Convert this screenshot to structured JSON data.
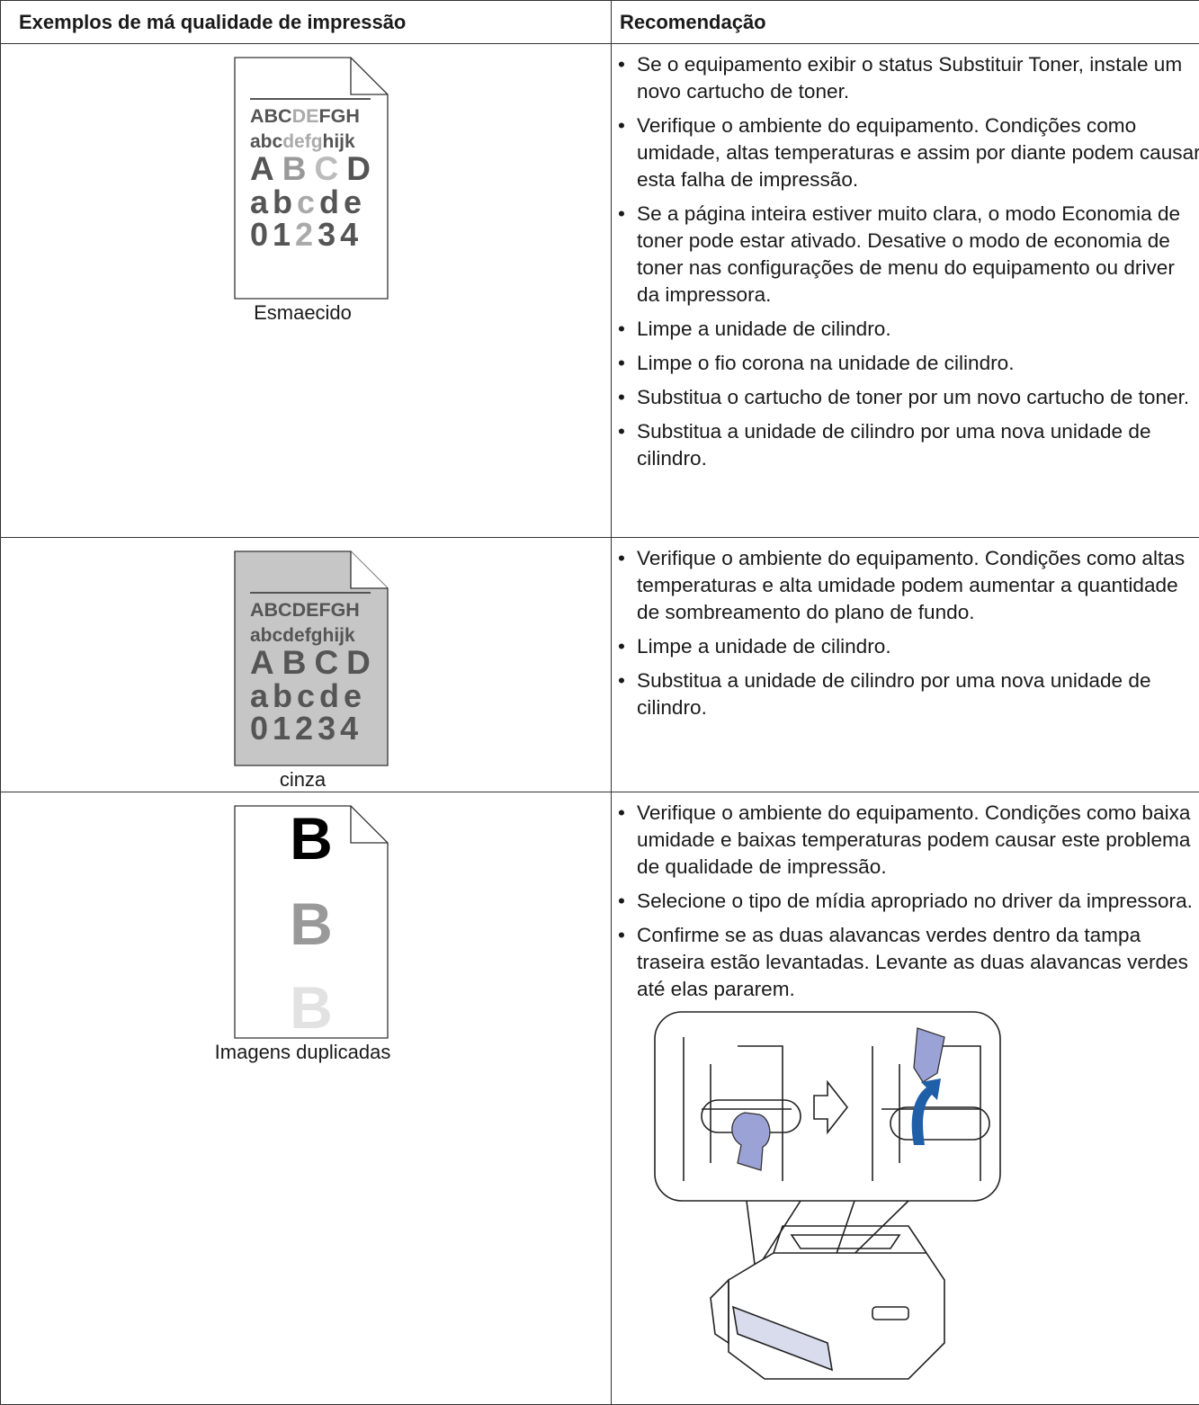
{
  "table": {
    "headers": [
      "Exemplos de má qualidade de impressão",
      "Recomendação"
    ],
    "rows": [
      {
        "sample": [
          [
            "ABC",
            "DE",
            "FGH"
          ],
          [
            "abc",
            "defg",
            "hijk"
          ],
          [
            "A",
            "B",
            "C",
            "D"
          ],
          [
            "ab",
            "c",
            "de"
          ],
          [
            "01",
            "2",
            "34"
          ]
        ],
        "caption": "Esmaecido",
        "bullets": [
          "Se o equipamento exibir o status Substituir Toner, instale um novo cartucho de toner.",
          "Verifique o ambiente do equipamento. Condições como umidade, altas temperaturas e assim por diante podem causar esta falha de impressão.",
          "Se a página inteira estiver muito clara, o modo Economia de toner pode estar ativado. Desative o modo de economia de toner nas configurações de menu do equipamento ou driver da impressora.",
          "Limpe a unidade de cilindro.",
          "Limpe o fio corona na unidade de cilindro.",
          "Substitua o cartucho de toner por um novo cartucho de toner.",
          "Substitua a unidade de cilindro por uma nova unidade de cilindro."
        ]
      },
      {
        "sample": [
          "ABCDEFGH",
          "abcdefghijk",
          "ABCD",
          "abcde",
          "01234"
        ],
        "caption": "cinza",
        "bullets": [
          "Verifique o ambiente do equipamento. Condições como altas temperaturas e alta umidade podem aumentar a quantidade de sombreamento do plano de fundo.",
          "Limpe a unidade de cilindro.",
          "Substitua a unidade de cilindro por uma nova unidade de cilindro."
        ]
      },
      {
        "sample": "B",
        "caption": "Imagens duplicadas",
        "bullets": [
          "Verifique o ambiente do equipamento. Condições como baixa umidade e baixas temperaturas podem causar este problema de qualidade de impressão.",
          "Selecione o tipo de mídia apropriado no driver da impressora.",
          "Confirme se as duas alavancas verdes dentro da tampa traseira estão levantadas. Levante as duas alavancas verdes até elas pararem."
        ]
      }
    ]
  }
}
